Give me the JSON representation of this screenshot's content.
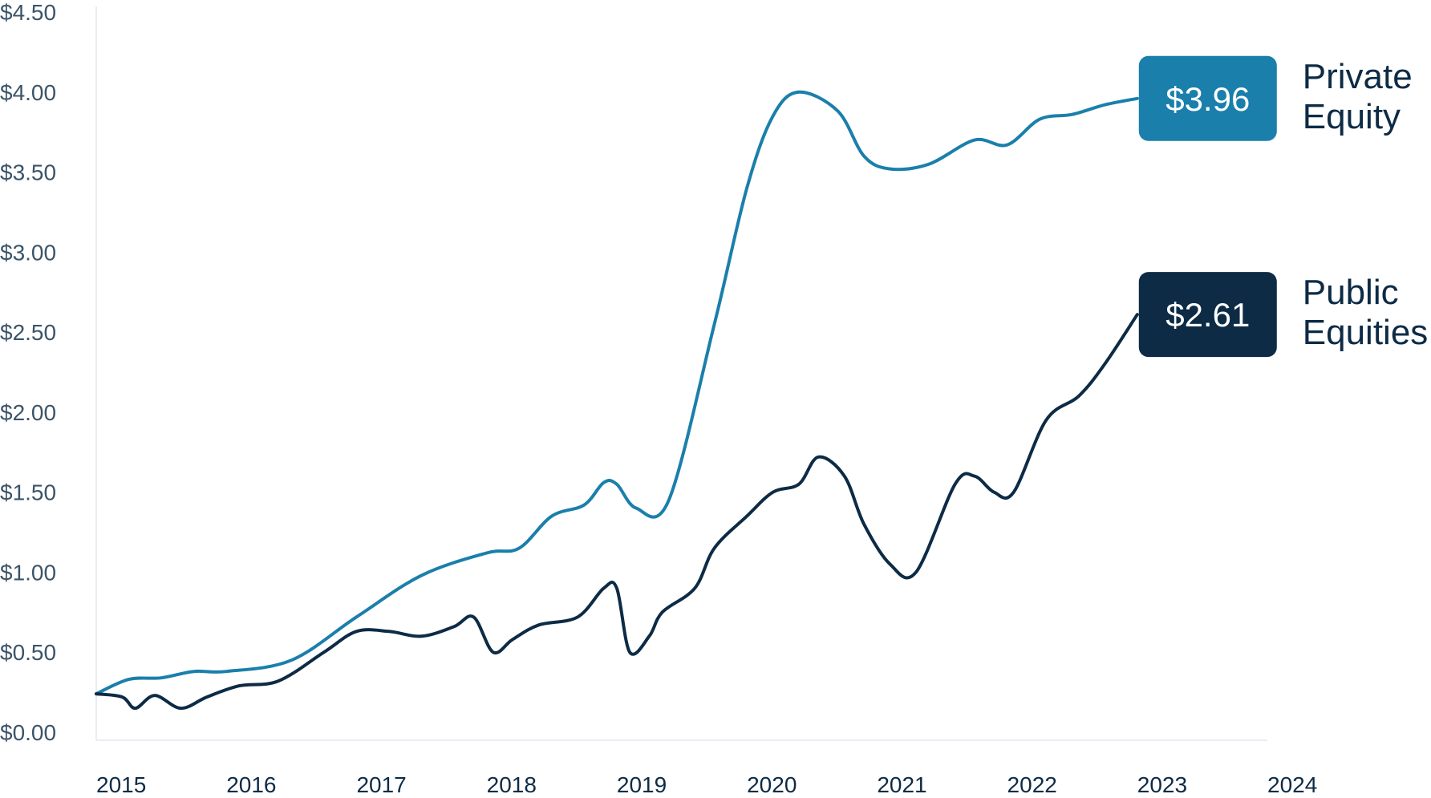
{
  "colors": {
    "private_equity": "#1a7fab",
    "public_equities": "#0d2b45",
    "axis_text": "#3c5468",
    "axis_line": "#e8edf2"
  },
  "chart_data": {
    "type": "line",
    "title": "",
    "xlabel": "",
    "ylabel": "",
    "y_tick_labels": [
      "$0.00",
      "$0.50",
      "$1.00",
      "$1.50",
      "$2.00",
      "$2.50",
      "$3.00",
      "$3.50",
      "$4.00",
      "$4.50"
    ],
    "x_tick_labels": [
      "2015",
      "2016",
      "2017",
      "2018",
      "2019",
      "2020",
      "2021",
      "2022",
      "2023",
      "2024"
    ],
    "ylim": [
      0,
      4.5
    ],
    "xlim": [
      2015,
      2024
    ],
    "grid": false,
    "legend": "end-of-line labels",
    "series": [
      {
        "name": "Private Equity",
        "end_value_label": "$3.96",
        "label_lines": [
          "Private",
          "Equity"
        ],
        "color": "#1a7fab",
        "points": [
          [
            2015.0,
            0.24
          ],
          [
            2015.25,
            0.33
          ],
          [
            2015.5,
            0.34
          ],
          [
            2015.75,
            0.38
          ],
          [
            2016.0,
            0.38
          ],
          [
            2016.5,
            0.45
          ],
          [
            2017.0,
            0.72
          ],
          [
            2017.5,
            0.98
          ],
          [
            2018.0,
            1.12
          ],
          [
            2018.25,
            1.15
          ],
          [
            2018.5,
            1.35
          ],
          [
            2018.75,
            1.42
          ],
          [
            2018.9,
            1.56
          ],
          [
            2019.0,
            1.55
          ],
          [
            2019.15,
            1.4
          ],
          [
            2019.4,
            1.45
          ],
          [
            2019.75,
            2.55
          ],
          [
            2020.0,
            3.4
          ],
          [
            2020.2,
            3.85
          ],
          [
            2020.4,
            4.0
          ],
          [
            2020.7,
            3.88
          ],
          [
            2020.9,
            3.6
          ],
          [
            2021.1,
            3.52
          ],
          [
            2021.4,
            3.55
          ],
          [
            2021.75,
            3.7
          ],
          [
            2022.0,
            3.67
          ],
          [
            2022.25,
            3.83
          ],
          [
            2022.5,
            3.86
          ],
          [
            2022.75,
            3.92
          ],
          [
            2023.0,
            3.96
          ]
        ]
      },
      {
        "name": "Public Equities",
        "end_value_label": "$2.61",
        "label_lines": [
          "Public",
          "Equities"
        ],
        "color": "#0d2b45",
        "points": [
          [
            2015.0,
            0.24
          ],
          [
            2015.2,
            0.22
          ],
          [
            2015.3,
            0.15
          ],
          [
            2015.45,
            0.23
          ],
          [
            2015.65,
            0.15
          ],
          [
            2015.85,
            0.22
          ],
          [
            2016.1,
            0.29
          ],
          [
            2016.4,
            0.32
          ],
          [
            2016.75,
            0.5
          ],
          [
            2017.0,
            0.63
          ],
          [
            2017.25,
            0.63
          ],
          [
            2017.5,
            0.6
          ],
          [
            2017.75,
            0.66
          ],
          [
            2017.9,
            0.72
          ],
          [
            2018.05,
            0.5
          ],
          [
            2018.2,
            0.58
          ],
          [
            2018.4,
            0.67
          ],
          [
            2018.7,
            0.72
          ],
          [
            2018.9,
            0.9
          ],
          [
            2019.0,
            0.9
          ],
          [
            2019.1,
            0.5
          ],
          [
            2019.25,
            0.6
          ],
          [
            2019.35,
            0.75
          ],
          [
            2019.6,
            0.9
          ],
          [
            2019.75,
            1.15
          ],
          [
            2020.0,
            1.35
          ],
          [
            2020.2,
            1.5
          ],
          [
            2020.4,
            1.55
          ],
          [
            2020.55,
            1.72
          ],
          [
            2020.75,
            1.6
          ],
          [
            2020.9,
            1.3
          ],
          [
            2021.1,
            1.05
          ],
          [
            2021.3,
            1.0
          ],
          [
            2021.6,
            1.55
          ],
          [
            2021.75,
            1.6
          ],
          [
            2021.9,
            1.5
          ],
          [
            2022.05,
            1.5
          ],
          [
            2022.3,
            1.95
          ],
          [
            2022.55,
            2.1
          ],
          [
            2022.75,
            2.3
          ],
          [
            2023.0,
            2.61
          ]
        ]
      }
    ]
  }
}
